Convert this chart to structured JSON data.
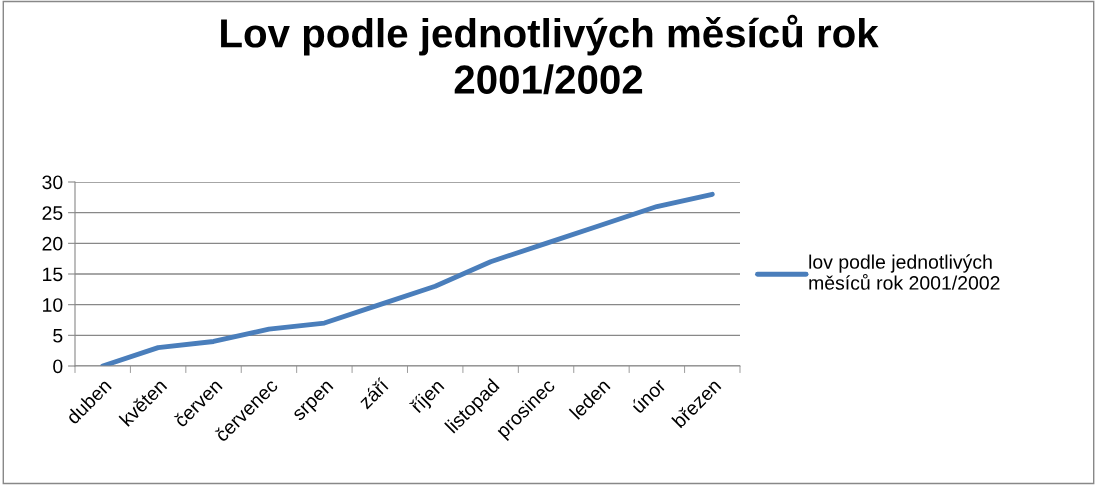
{
  "chart_data": {
    "type": "line",
    "title": "Lov podle jednotlivých měsíců rok 2001/2002",
    "categories": [
      "duben",
      "květen",
      "červen",
      "červenec",
      "srpen",
      "září",
      "říjen",
      "listopad",
      "prosinec",
      "leden",
      "únor",
      "březen"
    ],
    "series": [
      {
        "name": "lov podle jednotlivých měsíců rok 2001/2002",
        "color": "#4a7ebb",
        "values": [
          0,
          3,
          4,
          6,
          7,
          10,
          13,
          17,
          20,
          23,
          26,
          28
        ]
      }
    ],
    "ylim": [
      0,
      30
    ],
    "yticks": [
      0,
      5,
      10,
      15,
      20,
      25,
      30
    ],
    "grid": "y",
    "legend": "right",
    "marker": "none",
    "line_style": "solid"
  }
}
